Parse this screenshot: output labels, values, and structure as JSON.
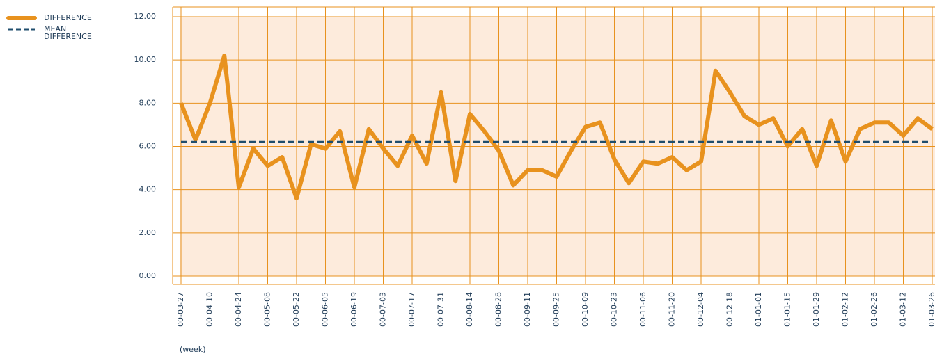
{
  "chart_data": {
    "type": "line",
    "x_label": "(week)",
    "categories": [
      "00-03-27",
      null,
      "00-04-10",
      null,
      "00-04-24",
      null,
      "00-05-08",
      null,
      "00-05-22",
      null,
      "00-06-05",
      null,
      "00-06-19",
      null,
      "00-07-03",
      null,
      "00-07-17",
      null,
      "00-07-31",
      null,
      "00-08-14",
      null,
      "00-08-28",
      null,
      "00-09-11",
      null,
      "00-09-25",
      null,
      "00-10-09",
      null,
      "00-10-23",
      null,
      "00-11-06",
      null,
      "00-11-20",
      null,
      "00-12-04",
      null,
      "00-12-18",
      null,
      "01-01-01",
      null,
      "01-01-15",
      null,
      "01-01-29",
      null,
      "01-02-12",
      null,
      "01-02-26",
      null,
      "01-03-12",
      null,
      "01-03-26"
    ],
    "series": [
      {
        "name": "DIFFERENCE",
        "color": "#e8921e",
        "style": "solid",
        "values": [
          8.0,
          6.3,
          8.0,
          10.2,
          4.1,
          5.9,
          5.1,
          5.5,
          3.6,
          6.1,
          5.9,
          6.7,
          4.1,
          6.8,
          5.9,
          5.1,
          6.5,
          5.2,
          8.5,
          4.4,
          7.5,
          6.7,
          5.8,
          4.2,
          4.9,
          4.9,
          4.6,
          5.8,
          6.9,
          7.1,
          5.4,
          4.3,
          5.3,
          5.2,
          5.5,
          4.9,
          5.3,
          9.5,
          8.5,
          7.4,
          7.0,
          7.3,
          6.0,
          6.8,
          5.1,
          7.2,
          5.3,
          6.8,
          7.1,
          7.1,
          6.5,
          7.3,
          6.8
        ]
      },
      {
        "name": "MEAN DIFFERENCE",
        "color": "#1f4e6e",
        "style": "dashed",
        "values": [
          6.2,
          6.2,
          6.2,
          6.2,
          6.2,
          6.2,
          6.2,
          6.2,
          6.2,
          6.2,
          6.2,
          6.2,
          6.2,
          6.2,
          6.2,
          6.2,
          6.2,
          6.2,
          6.2,
          6.2,
          6.2,
          6.2,
          6.2,
          6.2,
          6.2,
          6.2,
          6.2,
          6.2,
          6.2,
          6.2,
          6.2,
          6.2,
          6.2,
          6.2,
          6.2,
          6.2,
          6.2,
          6.2,
          6.2,
          6.2,
          6.2,
          6.2,
          6.2,
          6.2,
          6.2,
          6.2,
          6.2,
          6.2,
          6.2,
          6.2,
          6.2,
          6.2,
          6.2
        ]
      }
    ],
    "ylim": [
      0,
      12
    ],
    "yticks": [
      {
        "value": 0,
        "label": "0.00"
      },
      {
        "value": 2,
        "label": "2.00"
      },
      {
        "value": 4,
        "label": "4.00"
      },
      {
        "value": 6,
        "label": "6.00"
      },
      {
        "value": 8,
        "label": "8.00"
      },
      {
        "value": 10,
        "label": "10.00"
      },
      {
        "value": 12,
        "label": "12.00"
      }
    ],
    "grid": true,
    "legend": "left"
  }
}
